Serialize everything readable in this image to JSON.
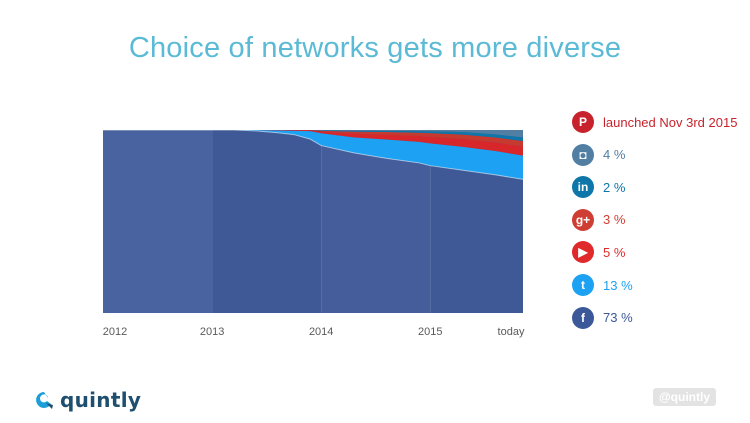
{
  "title": "Choice of networks gets more diverse",
  "chart_data": {
    "type": "area",
    "stacked": "percent",
    "title": "Choice of networks gets more diverse",
    "xlabel": "",
    "ylabel": "",
    "ylim": [
      0,
      100
    ],
    "tick_labels": [
      "2012",
      "2013",
      "2014",
      "2015",
      "today"
    ],
    "x": [
      2012.0,
      2012.5,
      2012.8,
      2013.0,
      2013.2,
      2013.4,
      2013.6,
      2013.75,
      2013.9,
      2014.0,
      2014.3,
      2014.6,
      2014.9,
      2015.0,
      2015.3,
      2015.6,
      2015.85
    ],
    "series": [
      {
        "name": "Facebook",
        "icon": "facebook-icon",
        "color": "#3b5998",
        "values": [
          100,
          100,
          100,
          100,
          100,
          99.5,
          98.5,
          97.5,
          95,
          91.5,
          87.5,
          84.5,
          82,
          80.5,
          78,
          75.5,
          73
        ]
      },
      {
        "name": "Twitter",
        "icon": "twitter-icon",
        "color": "#1da1f2",
        "values": [
          0,
          0,
          0,
          0,
          0,
          0.5,
          1.3,
          2.1,
          4.4,
          6.7,
          8.5,
          10.3,
          11.5,
          12.2,
          12.8,
          13,
          13
        ]
      },
      {
        "name": "YouTube",
        "icon": "youtube-icon",
        "color": "#d8272b",
        "values": [
          0,
          0,
          0,
          0,
          0,
          0,
          0.2,
          0.3,
          0.5,
          1,
          2,
          2.7,
          3.2,
          3.6,
          4.3,
          4.7,
          5
        ]
      },
      {
        "name": "Google+",
        "icon": "google-plus-icon",
        "color": "#c73a2f",
        "values": [
          0,
          0,
          0,
          0,
          0,
          0,
          0,
          0.1,
          0.1,
          0.4,
          1.1,
          1.4,
          1.8,
          2,
          2.4,
          2.7,
          3
        ]
      },
      {
        "name": "LinkedIn",
        "icon": "linkedin-icon",
        "color": "#0e76a8",
        "values": [
          0,
          0,
          0,
          0,
          0,
          0,
          0,
          0,
          0,
          0.2,
          0.5,
          0.6,
          0.9,
          1,
          1.4,
          1.7,
          2
        ]
      },
      {
        "name": "Instagram",
        "icon": "instagram-icon",
        "color": "#517fa4",
        "values": [
          0,
          0,
          0,
          0,
          0,
          0,
          0,
          0,
          0,
          0.2,
          0.4,
          0.5,
          0.6,
          0.7,
          1.1,
          2.4,
          4
        ]
      },
      {
        "name": "Pinterest",
        "icon": "pinterest-icon",
        "color": "#cb2027",
        "values": [
          0,
          0,
          0,
          0,
          0,
          0,
          0,
          0,
          0,
          0,
          0,
          0,
          0,
          0,
          0,
          0,
          0
        ]
      }
    ],
    "band_colors": [
      "#4a66a2",
      "#3f5a96",
      "#475f9b",
      "#3f5a96"
    ]
  },
  "legend": [
    {
      "label": "launched Nov 3rd 2015",
      "icon": "pinterest-icon",
      "glyph": "P",
      "color": "#c8232c",
      "text_color": "#c8232c"
    },
    {
      "label": "4 %",
      "icon": "instagram-icon",
      "glyph": "◘",
      "color": "#517fa4",
      "text_color": "#517fa4"
    },
    {
      "label": "2 %",
      "icon": "linkedin-icon",
      "glyph": "in",
      "color": "#0e76a8",
      "text_color": "#0e76a8"
    },
    {
      "label": "3 %",
      "icon": "google-plus-icon",
      "glyph": "g+",
      "color": "#cf3e32",
      "text_color": "#cf3e32"
    },
    {
      "label": "5 %",
      "icon": "youtube-icon",
      "glyph": "▶",
      "color": "#e0292b",
      "text_color": "#e0292b"
    },
    {
      "label": "13 %",
      "icon": "twitter-icon",
      "glyph": "t",
      "color": "#1da1f2",
      "text_color": "#1da1f2"
    },
    {
      "label": "73 %",
      "icon": "facebook-icon",
      "glyph": "f",
      "color": "#3b5998",
      "text_color": "#3b5998"
    }
  ],
  "brand": {
    "name": "quintly",
    "color": "#1f4f6e",
    "accent": "#1c9fd8"
  },
  "handle": "@quintly"
}
